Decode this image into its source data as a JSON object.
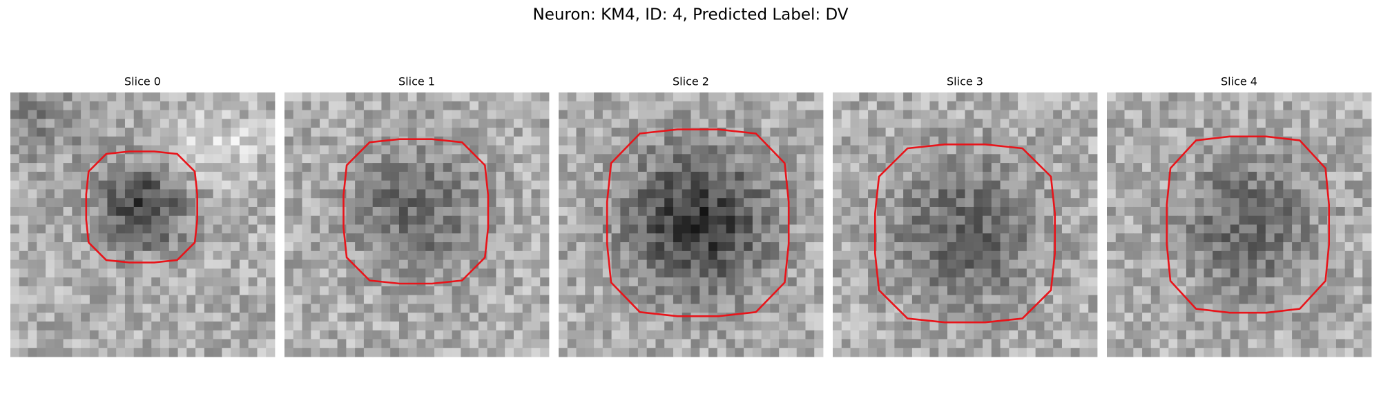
{
  "title": "Neuron: KM4, ID: 4, Predicted Label: DV",
  "panels": [
    {
      "title": "Slice 0"
    },
    {
      "title": "Slice 1"
    },
    {
      "title": "Slice 2"
    },
    {
      "title": "Slice 3"
    },
    {
      "title": "Slice 4"
    }
  ]
}
